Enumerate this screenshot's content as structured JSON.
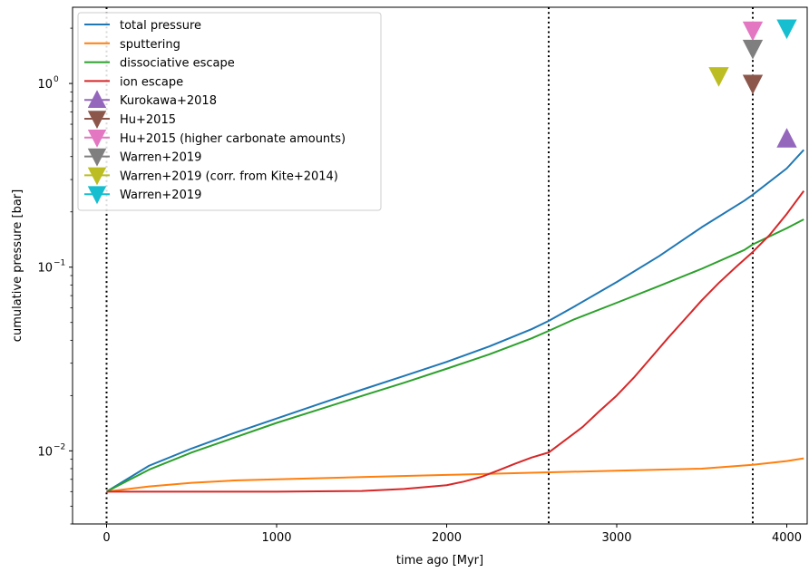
{
  "chart_data": {
    "type": "line",
    "title": "",
    "xlabel": "time ago [Myr]",
    "ylabel": "cumulative pressure [bar]",
    "x_scale": "linear",
    "y_scale": "log",
    "xlim": [
      -200,
      4120
    ],
    "ylim": [
      0.004,
      2.6
    ],
    "x_ticks": [
      {
        "value": 0,
        "label": "0"
      },
      {
        "value": 1000,
        "label": "1000"
      },
      {
        "value": 2000,
        "label": "2000"
      },
      {
        "value": 3000,
        "label": "3000"
      },
      {
        "value": 4000,
        "label": "4000"
      }
    ],
    "y_ticks": [
      {
        "value": 0.01,
        "base": "10",
        "exp": "−2"
      },
      {
        "value": 0.1,
        "base": "10",
        "exp": "−1"
      },
      {
        "value": 1,
        "base": "10",
        "exp": "0"
      }
    ],
    "vlines": [
      0,
      2600,
      3800
    ],
    "legend_position": "top-left",
    "series": [
      {
        "name": "total pressure",
        "color": "#1f77b4",
        "x": [
          0,
          250,
          500,
          750,
          1000,
          1250,
          1500,
          1750,
          2000,
          2250,
          2500,
          2600,
          2750,
          3000,
          3250,
          3500,
          3750,
          3800,
          4000,
          4100
        ],
        "y": [
          0.006,
          0.0083,
          0.0103,
          0.0125,
          0.015,
          0.018,
          0.0215,
          0.0256,
          0.0305,
          0.037,
          0.046,
          0.051,
          0.061,
          0.083,
          0.115,
          0.165,
          0.23,
          0.248,
          0.345,
          0.435
        ]
      },
      {
        "name": "sputtering",
        "color": "#ff7f0e",
        "x": [
          0,
          250,
          500,
          750,
          1000,
          1500,
          2000,
          2500,
          3000,
          3500,
          3800,
          4000,
          4100
        ],
        "y": [
          0.006,
          0.0064,
          0.0067,
          0.0069,
          0.007,
          0.0072,
          0.0074,
          0.0076,
          0.0078,
          0.008,
          0.0084,
          0.0088,
          0.0091
        ]
      },
      {
        "name": "dissociative escape",
        "color": "#2ca02c",
        "x": [
          0,
          250,
          500,
          750,
          1000,
          1250,
          1500,
          1750,
          2000,
          2250,
          2500,
          2600,
          2750,
          3000,
          3250,
          3500,
          3750,
          3800,
          4000,
          4100
        ],
        "y": [
          0.006,
          0.0079,
          0.0098,
          0.0118,
          0.0142,
          0.0168,
          0.0199,
          0.0235,
          0.028,
          0.0335,
          0.041,
          0.045,
          0.052,
          0.064,
          0.079,
          0.098,
          0.124,
          0.133,
          0.163,
          0.182
        ]
      },
      {
        "name": "ion escape",
        "color": "#d62728",
        "x": [
          0,
          500,
          1000,
          1500,
          1750,
          2000,
          2100,
          2200,
          2300,
          2400,
          2500,
          2600,
          2700,
          2800,
          2900,
          3000,
          3100,
          3200,
          3300,
          3400,
          3500,
          3600,
          3700,
          3800,
          3900,
          4000,
          4100
        ],
        "y": [
          0.006,
          0.006,
          0.006,
          0.00605,
          0.0062,
          0.0065,
          0.0068,
          0.0072,
          0.0078,
          0.0085,
          0.0092,
          0.0098,
          0.0115,
          0.0135,
          0.0165,
          0.02,
          0.025,
          0.032,
          0.041,
          0.052,
          0.066,
          0.082,
          0.1,
          0.121,
          0.15,
          0.195,
          0.26
        ]
      }
    ],
    "markers": [
      {
        "name": "Kurokawa+2018",
        "color": "#9467bd",
        "shape": "triangle-up",
        "x": 4000,
        "y": 0.5
      },
      {
        "name": "Hu+2015",
        "color": "#8c564b",
        "shape": "triangle-down",
        "x": 3800,
        "y": 1.0
      },
      {
        "name": "Hu+2015 (higher carbonate amounts)",
        "color": "#e377c2",
        "shape": "triangle-down",
        "x": 3800,
        "y": 1.95
      },
      {
        "name": "Warren+2019",
        "color": "#7f7f7f",
        "shape": "triangle-down",
        "x": 3800,
        "y": 1.55
      },
      {
        "name": "Warren+2019 (corr. from Kite+2014)",
        "color": "#bcbd22",
        "shape": "triangle-down",
        "x": 3600,
        "y": 1.1
      },
      {
        "name": "Warren+2019",
        "color": "#17becf",
        "shape": "triangle-down",
        "x": 4000,
        "y": 2.0
      }
    ]
  }
}
